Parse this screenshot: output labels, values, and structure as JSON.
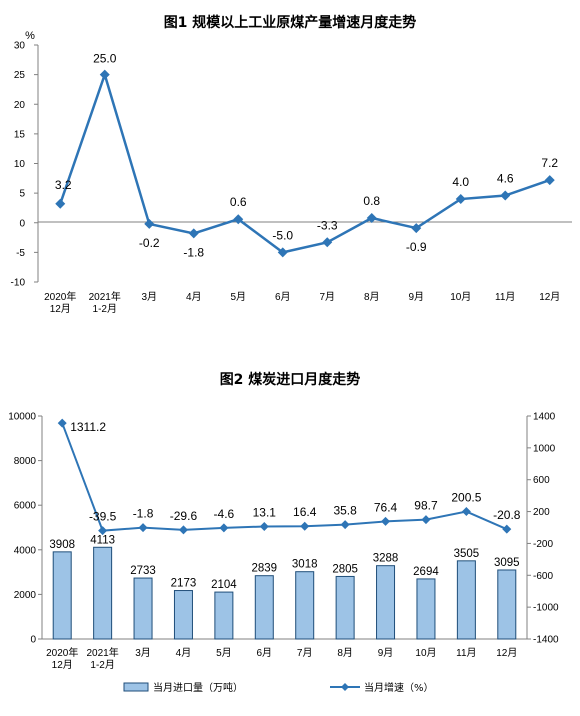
{
  "colors": {
    "line": "#2e75b6",
    "bar_fill": "#9dc3e6",
    "bar_stroke": "#1f4e79",
    "axis": "#808080"
  },
  "chart_data": [
    {
      "type": "line",
      "title": "图1  规模以上工业原煤产量增速月度走势",
      "ylabel": "%",
      "ylim": [
        -10,
        30
      ],
      "yticks": [
        "30",
        "25",
        "20",
        "15",
        "10",
        "5",
        "0",
        "-5",
        "-10"
      ],
      "categories": [
        [
          "2020年",
          "12月"
        ],
        [
          "2021年",
          "1-2月"
        ],
        [
          "3月"
        ],
        [
          "4月"
        ],
        [
          "5月"
        ],
        [
          "6月"
        ],
        [
          "7月"
        ],
        [
          "8月"
        ],
        [
          "9月"
        ],
        [
          "10月"
        ],
        [
          "11月"
        ],
        [
          "12月"
        ]
      ],
      "values": [
        3.2,
        25.0,
        -0.2,
        -1.8,
        0.6,
        -5.0,
        -3.3,
        0.8,
        -0.9,
        4.0,
        4.6,
        7.2
      ],
      "value_labels": [
        "3.2",
        "25.0",
        "-0.2",
        "-1.8",
        "0.6",
        "-5.0",
        "-3.3",
        "0.8",
        "-0.9",
        "4.0",
        "4.6",
        "7.2"
      ],
      "grid": false
    },
    {
      "type": "bar",
      "title": "图2  煤炭进口月度走势",
      "categories": [
        [
          "2020年",
          "12月"
        ],
        [
          "2021年",
          "1-2月"
        ],
        [
          "3月"
        ],
        [
          "4月"
        ],
        [
          "5月"
        ],
        [
          "6月"
        ],
        [
          "7月"
        ],
        [
          "8月"
        ],
        [
          "9月"
        ],
        [
          "10月"
        ],
        [
          "11月"
        ],
        [
          "12月"
        ]
      ],
      "ylim": [
        0,
        10000
      ],
      "yticks": [
        "10000",
        "8000",
        "6000",
        "4000",
        "2000",
        "0"
      ],
      "y2lim": [
        -1400,
        1400
      ],
      "y2ticks": [
        "1400",
        "1000",
        "600",
        "200",
        "-200",
        "-600",
        "-1000",
        "-1400"
      ],
      "series": [
        {
          "name": "当月进口量（万吨）",
          "type": "bar",
          "axis": "left",
          "values": [
            3908,
            4113,
            2733,
            2173,
            2104,
            2839,
            3018,
            2805,
            3288,
            2694,
            3505,
            3095
          ],
          "value_labels": [
            "3908",
            "4113",
            "2733",
            "2173",
            "2104",
            "2839",
            "3018",
            "2805",
            "3288",
            "2694",
            "3505",
            "3095"
          ]
        },
        {
          "name": "当月增速（%）",
          "type": "line",
          "axis": "right",
          "values": [
            1311.2,
            -39.5,
            -1.8,
            -29.6,
            -4.6,
            13.1,
            16.4,
            35.8,
            76.4,
            98.7,
            200.5,
            -20.8
          ],
          "value_labels": [
            "1311.2",
            "-39.5",
            "-1.8",
            "-29.6",
            "-4.6",
            "13.1",
            "16.4",
            "35.8",
            "76.4",
            "98.7",
            "200.5",
            "-20.8"
          ]
        }
      ],
      "legend_position": "bottom",
      "grid": false
    }
  ]
}
